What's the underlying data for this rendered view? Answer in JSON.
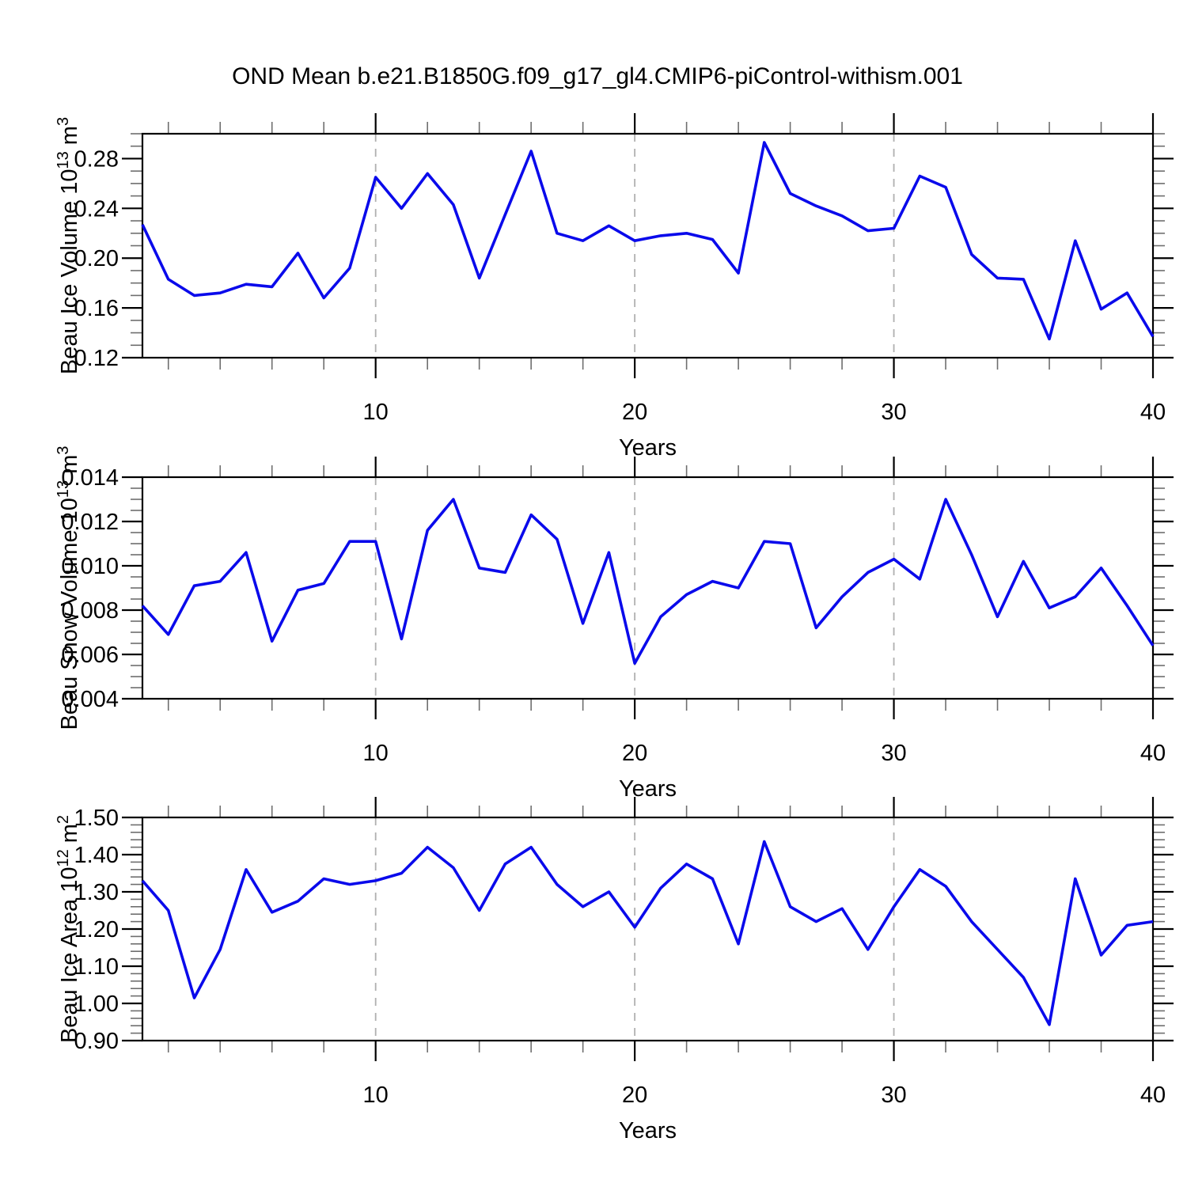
{
  "title": "OND Mean b.e21.B1850G.f09_g17_gl4.CMIP6-piControl-withism.001",
  "colors": {
    "line": "#0a0aeb",
    "grid": "#b0b0b0",
    "frame": "#000000",
    "major_tick": "#000000",
    "minor_tick": "#6e6e6e",
    "text": "#000000",
    "background": "#ffffff"
  },
  "x_axis": {
    "label": "Years",
    "min": 1,
    "max": 40,
    "major_ticks": [
      10,
      20,
      30,
      40
    ],
    "major_tick_labels": [
      "10",
      "20",
      "30",
      "40"
    ],
    "minor_step": 2,
    "gridlines": [
      10,
      20,
      30
    ]
  },
  "chart_data": [
    {
      "id": "ice-volume",
      "type": "line",
      "ylabel_parts": [
        {
          "t": "Beau Ice Volume 10"
        },
        {
          "t": "13",
          "sup": true
        },
        {
          "t": " m"
        },
        {
          "t": "3",
          "sup": true
        }
      ],
      "ylabel_plain": "Beau Ice Volume 10^13 m^3",
      "xlabel": "Years",
      "ylim": [
        0.12,
        0.3
      ],
      "ytick_minor_step": 0.01,
      "yticks": [
        {
          "value": 0.28,
          "label": "0.28"
        },
        {
          "value": 0.24,
          "label": "0.24"
        },
        {
          "value": 0.2,
          "label": "0.20"
        },
        {
          "value": 0.16,
          "label": "0.16"
        },
        {
          "value": 0.12,
          "label": "0.12"
        }
      ],
      "x_start": 1,
      "x_end": 40,
      "values": [
        0.227,
        0.183,
        0.17,
        0.172,
        0.179,
        0.177,
        0.204,
        0.168,
        0.192,
        0.265,
        0.24,
        0.268,
        0.243,
        0.184,
        0.235,
        0.286,
        0.22,
        0.214,
        0.226,
        0.214,
        0.218,
        0.22,
        0.215,
        0.188,
        0.293,
        0.252,
        0.242,
        0.234,
        0.222,
        0.224,
        0.266,
        0.257,
        0.203,
        0.184,
        0.183,
        0.135,
        0.214,
        0.159,
        0.172,
        0.137
      ]
    },
    {
      "id": "snow-volume",
      "type": "line",
      "ylabel_parts": [
        {
          "t": "Beau Snow Volume 10"
        },
        {
          "t": "13",
          "sup": true
        },
        {
          "t": " m"
        },
        {
          "t": "3",
          "sup": true
        }
      ],
      "ylabel_plain": "Beau Snow Volume 10^13 m^3",
      "xlabel": "Years",
      "ylim": [
        0.004,
        0.014
      ],
      "ytick_minor_step": 0.0005,
      "yticks": [
        {
          "value": 0.014,
          "label": "0.014"
        },
        {
          "value": 0.012,
          "label": "0.012"
        },
        {
          "value": 0.01,
          "label": "0.010"
        },
        {
          "value": 0.008,
          "label": "0.008"
        },
        {
          "value": 0.006,
          "label": "0.006"
        },
        {
          "value": 0.004,
          "label": "0.004"
        }
      ],
      "x_start": 1,
      "x_end": 40,
      "values": [
        0.0082,
        0.0069,
        0.0091,
        0.0093,
        0.0106,
        0.0066,
        0.0089,
        0.0092,
        0.0111,
        0.0111,
        0.0067,
        0.0116,
        0.013,
        0.0099,
        0.0097,
        0.0123,
        0.0112,
        0.0074,
        0.0106,
        0.0056,
        0.0077,
        0.0087,
        0.0093,
        0.009,
        0.0111,
        0.011,
        0.0072,
        0.0086,
        0.0097,
        0.0103,
        0.0094,
        0.013,
        0.0105,
        0.0077,
        0.0102,
        0.0081,
        0.0086,
        0.0099,
        0.0082,
        0.0064
      ]
    },
    {
      "id": "ice-area",
      "type": "line",
      "ylabel_parts": [
        {
          "t": "Beau Ice Area 10"
        },
        {
          "t": "12",
          "sup": true
        },
        {
          "t": " m"
        },
        {
          "t": "2",
          "sup": true
        }
      ],
      "ylabel_plain": "Beau Ice Area 10^12 m^2",
      "xlabel": "Years",
      "ylim": [
        0.9,
        1.5
      ],
      "ytick_minor_step": 0.02,
      "yticks": [
        {
          "value": 1.5,
          "label": "1.50"
        },
        {
          "value": 1.4,
          "label": "1.40"
        },
        {
          "value": 1.3,
          "label": "1.30"
        },
        {
          "value": 1.2,
          "label": "1.20"
        },
        {
          "value": 1.1,
          "label": "1.10"
        },
        {
          "value": 1.0,
          "label": "1.00"
        },
        {
          "value": 0.9,
          "label": "0.90"
        }
      ],
      "x_start": 1,
      "x_end": 40,
      "values": [
        1.33,
        1.25,
        1.015,
        1.145,
        1.36,
        1.245,
        1.275,
        1.335,
        1.32,
        1.33,
        1.35,
        1.42,
        1.365,
        1.25,
        1.375,
        1.42,
        1.32,
        1.26,
        1.3,
        1.205,
        1.31,
        1.375,
        1.335,
        1.16,
        1.435,
        1.26,
        1.22,
        1.255,
        1.145,
        1.26,
        1.36,
        1.315,
        1.22,
        1.145,
        1.07,
        0.943,
        1.335,
        1.13,
        1.21,
        1.22
      ]
    }
  ]
}
